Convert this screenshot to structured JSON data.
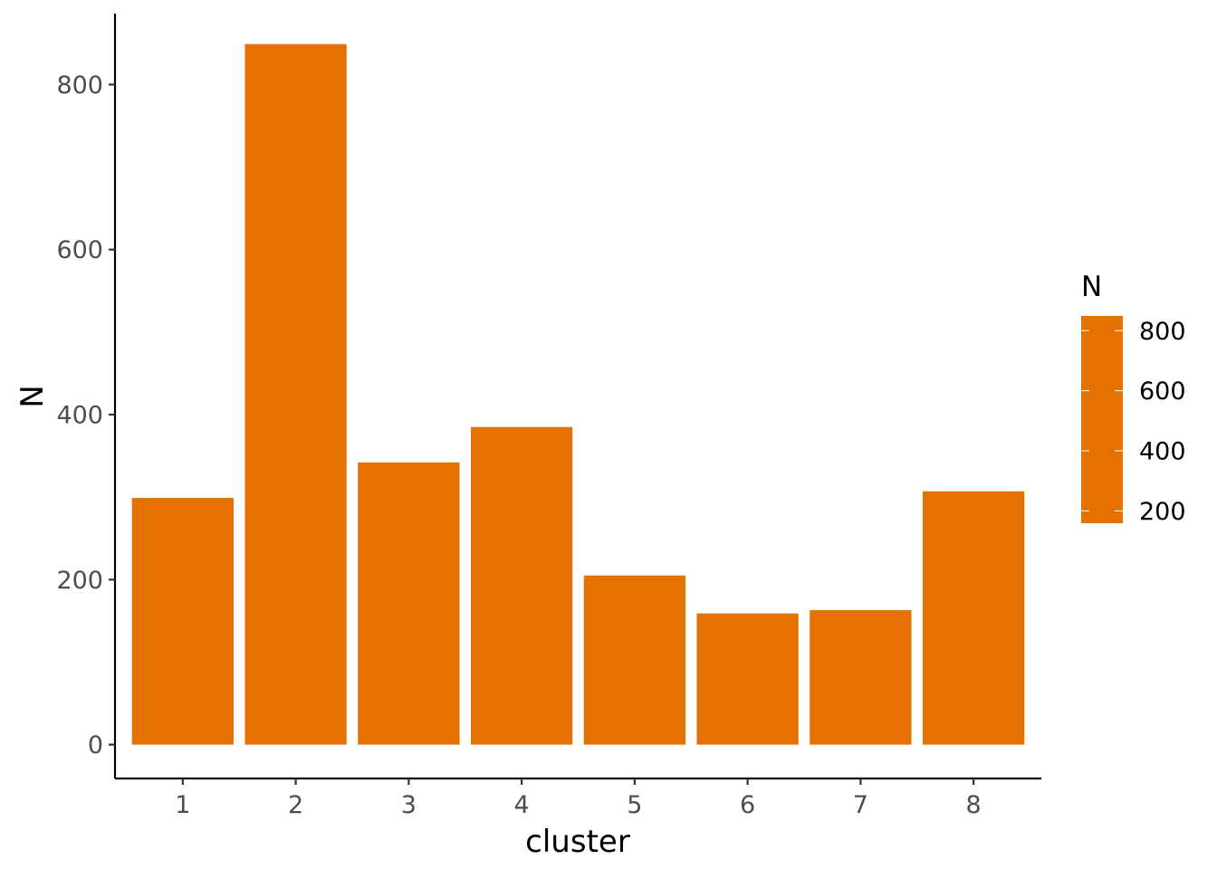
{
  "chart_data": {
    "type": "bar",
    "categories": [
      "1",
      "2",
      "3",
      "4",
      "5",
      "6",
      "7",
      "8"
    ],
    "values": [
      299,
      849,
      342,
      385,
      205,
      159,
      163,
      307
    ],
    "title": "",
    "xlabel": "cluster",
    "ylabel": "N",
    "ylim": [
      -41,
      886
    ],
    "yticks": [
      0,
      200,
      400,
      600,
      800
    ],
    "ytick_labels": [
      "0",
      "200",
      "400",
      "600",
      "800"
    ],
    "bar_color": "#E57200",
    "grid": false,
    "legend": {
      "title": "N",
      "placement": "right",
      "range": [
        159,
        849
      ],
      "ticks": [
        200,
        400,
        600,
        800
      ],
      "tick_labels": [
        "200",
        "400",
        "600",
        "800"
      ],
      "color": "#E57200"
    }
  }
}
